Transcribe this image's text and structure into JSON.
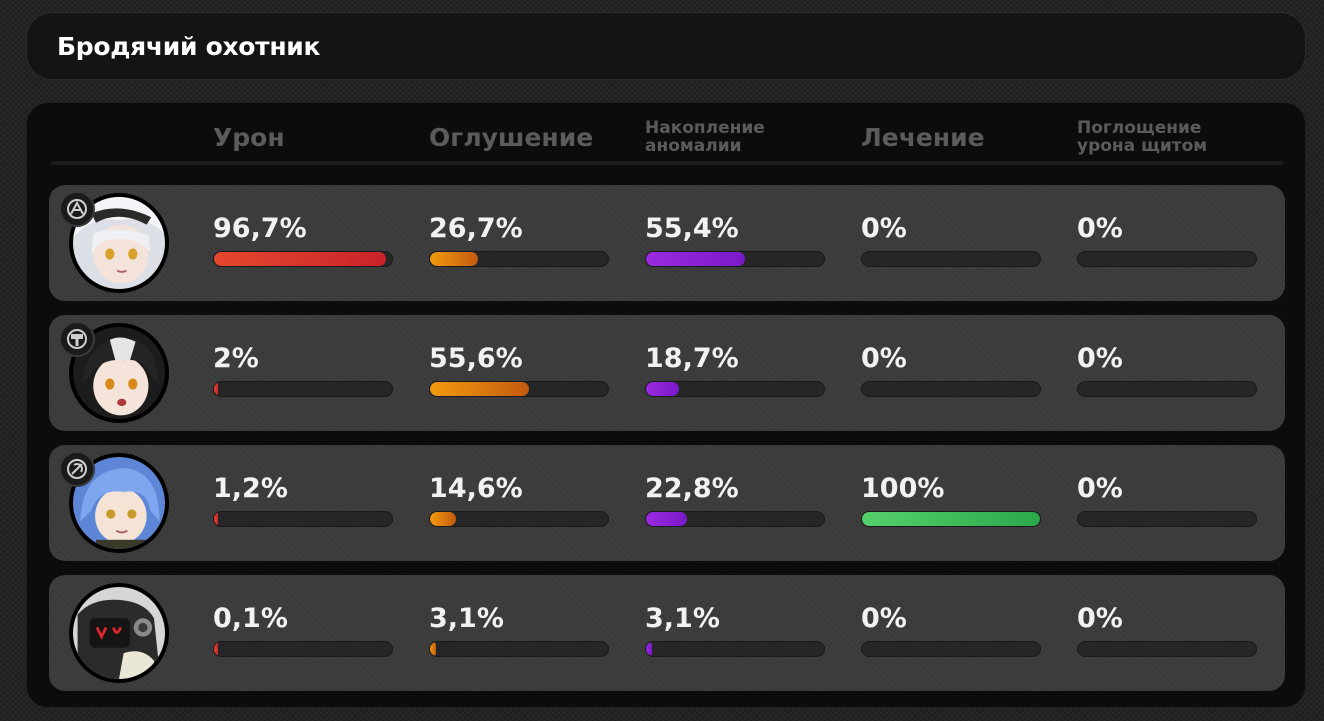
{
  "title": "Бродячий охотник",
  "columns": [
    {
      "key": "damage",
      "label": "Урон",
      "size": "big"
    },
    {
      "key": "stun",
      "label": "Оглушение",
      "size": "big"
    },
    {
      "key": "anomaly",
      "label": "Накопление аномалии",
      "size": "small"
    },
    {
      "key": "heal",
      "label": "Лечение",
      "size": "big"
    },
    {
      "key": "shield",
      "label": "Поглощение урона щитом",
      "size": "small"
    }
  ],
  "colors": {
    "damage": "#d8332c",
    "stun": "#e08610",
    "anomaly": "#8f22d8",
    "heal": "#3fbf5b",
    "shield": "#4a84e0"
  },
  "members": [
    {
      "avatar": "white-haired-girl-portrait",
      "role_icon": "anomaly-role-icon",
      "damage": {
        "text": "96,7%",
        "value": 96.7
      },
      "stun": {
        "text": "26,7%",
        "value": 26.7
      },
      "anomaly": {
        "text": "55,4%",
        "value": 55.4
      },
      "heal": {
        "text": "0%",
        "value": 0
      },
      "shield": {
        "text": "0%",
        "value": 0
      }
    },
    {
      "avatar": "black-white-haired-girl-portrait",
      "role_icon": "stun-role-icon",
      "damage": {
        "text": "2%",
        "value": 2
      },
      "stun": {
        "text": "55,6%",
        "value": 55.6
      },
      "anomaly": {
        "text": "18,7%",
        "value": 18.7
      },
      "heal": {
        "text": "0%",
        "value": 0
      },
      "shield": {
        "text": "0%",
        "value": 0
      }
    },
    {
      "avatar": "blue-haired-girl-portrait",
      "role_icon": "support-role-icon",
      "damage": {
        "text": "1,2%",
        "value": 1.2
      },
      "stun": {
        "text": "14,6%",
        "value": 14.6
      },
      "anomaly": {
        "text": "22,8%",
        "value": 22.8
      },
      "heal": {
        "text": "100%",
        "value": 100
      },
      "shield": {
        "text": "0%",
        "value": 0
      }
    },
    {
      "avatar": "bangboo-robot-portrait",
      "role_icon": "",
      "damage": {
        "text": "0,1%",
        "value": 0.1
      },
      "stun": {
        "text": "3,1%",
        "value": 3.1
      },
      "anomaly": {
        "text": "3,1%",
        "value": 3.1
      },
      "heal": {
        "text": "0%",
        "value": 0
      },
      "shield": {
        "text": "0%",
        "value": 0
      }
    }
  ]
}
